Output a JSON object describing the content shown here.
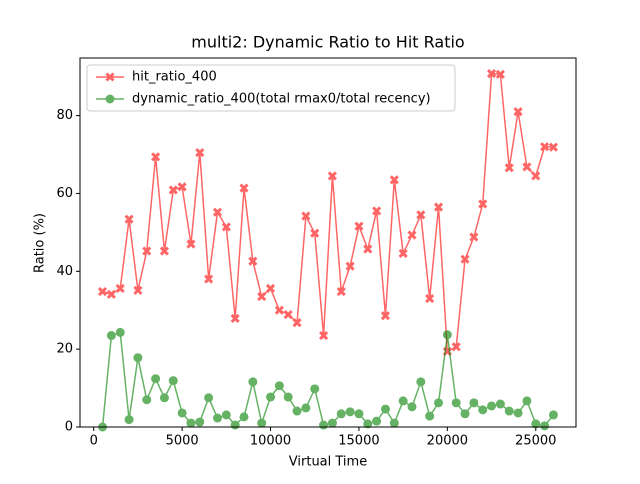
{
  "chart_data": {
    "type": "line",
    "title": "multi2: Dynamic Ratio to Hit Ratio",
    "x_label": "Virtual Time",
    "y_label": "Ratio (%)",
    "x": [
      500,
      1000,
      1500,
      2000,
      2500,
      3000,
      3500,
      4000,
      4500,
      5000,
      5500,
      6000,
      6500,
      7000,
      7500,
      8000,
      8500,
      9000,
      9500,
      10000,
      10500,
      11000,
      11500,
      12000,
      12500,
      13000,
      13500,
      14000,
      14500,
      15000,
      15500,
      16000,
      16500,
      17000,
      17500,
      18000,
      18500,
      19000,
      19500,
      20000,
      20500,
      21000,
      21500,
      22000,
      22500,
      23000,
      23500,
      24000,
      24500,
      25000,
      25500,
      26000
    ],
    "series": [
      {
        "name": "hit_ratio_400",
        "color": "red",
        "marker": "x",
        "values": [
          34.8,
          34.1,
          35.6,
          53.4,
          35.1,
          45.2,
          69.4,
          45.2,
          60.9,
          61.7,
          47,
          70.5,
          38,
          55.2,
          51.4,
          27.9,
          61.4,
          42.6,
          33.5,
          35.6,
          30,
          28.9,
          26.8,
          54.2,
          49.8,
          23.5,
          64.5,
          34.8,
          41.3,
          51.6,
          45.7,
          55.5,
          28.6,
          63.5,
          44.6,
          49.3,
          54.5,
          33,
          56.5,
          19.4,
          20.6,
          43.1,
          48.8,
          57.3,
          90.8,
          90.6,
          66.6,
          81,
          66.8,
          64.5,
          72,
          71.9
        ]
      },
      {
        "name": "dynamic_ratio_400(total rmax0/total recency)",
        "color": "green",
        "marker": "o",
        "values": [
          0,
          23.5,
          24.3,
          1.9,
          17.8,
          7,
          12.4,
          7.5,
          11.9,
          3.6,
          1,
          1.3,
          7.5,
          2.3,
          3.1,
          0.5,
          2.6,
          11.6,
          1,
          7.7,
          10.6,
          7.7,
          4.1,
          4.9,
          9.8,
          0.5,
          1,
          3.4,
          3.9,
          3.4,
          0.8,
          1.5,
          4.6,
          1,
          6.7,
          5.2,
          11.6,
          2.8,
          6.2,
          23.7,
          6.2,
          3.4,
          6.2,
          4.4,
          5.4,
          5.9,
          4.1,
          3.6,
          6.7,
          0.8,
          0.3,
          3.1
        ]
      }
    ],
    "xlim": [
      -775,
      27275
    ],
    "ylim": [
      0,
      94.8
    ],
    "xticks": [
      0,
      5000,
      10000,
      15000,
      20000,
      25000
    ],
    "yticks": [
      0,
      20,
      40,
      60,
      80
    ],
    "legend": "upper left"
  }
}
